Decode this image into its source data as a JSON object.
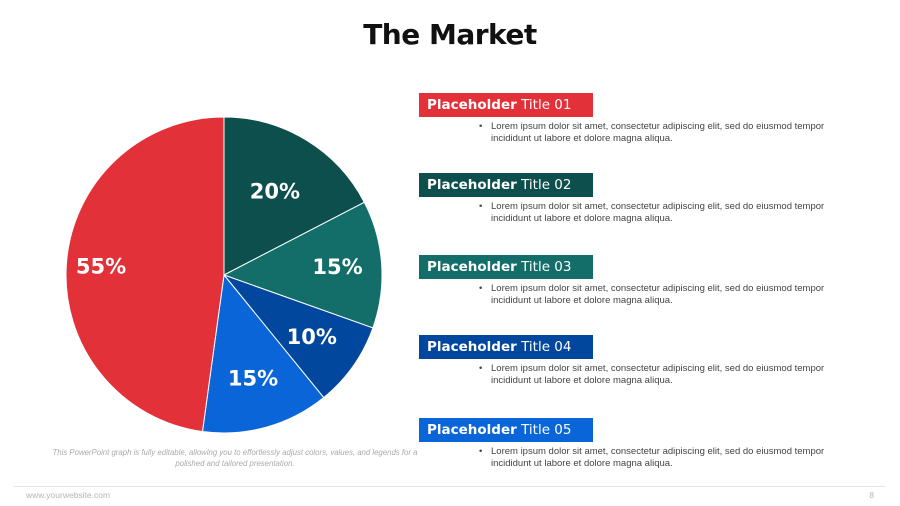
{
  "slide": {
    "title": "The Market",
    "note": "This PowerPoint graph is fully editable, allowing you to effortlessly adjust colors, values, and legends for a polished and tailored presentation.",
    "footer": {
      "website": "www.yourwebsite.com",
      "page_number": "8"
    }
  },
  "items": [
    {
      "title_bold": "Placeholder",
      "title_rest": " Title 01",
      "color": "#E3313A",
      "body": "Lorem ipsum dolor sit amet, consectetur adipiscing elit, sed do eiusmod tempor incididunt ut labore et dolore magna aliqua."
    },
    {
      "title_bold": "Placeholder",
      "title_rest": " Title 02",
      "color": "#0D4F4D",
      "body": "Lorem ipsum dolor sit amet, consectetur adipiscing elit, sed do eiusmod tempor incididunt ut labore et dolore magna aliqua."
    },
    {
      "title_bold": "Placeholder",
      "title_rest": " Title 03",
      "color": "#136E6A",
      "body": "Lorem ipsum dolor sit amet, consectetur adipiscing elit, sed do eiusmod tempor incididunt ut labore et dolore magna aliqua."
    },
    {
      "title_bold": "Placeholder",
      "title_rest": " Title 04",
      "color": "#02479E",
      "body": "Lorem ipsum dolor sit amet, consectetur adipiscing elit, sed do eiusmod tempor incididunt ut labore et dolore magna aliqua."
    },
    {
      "title_bold": "Placeholder",
      "title_rest": " Title 05",
      "color": "#0A66D8",
      "body": "Lorem ipsum dolor sit amet, consectetur adipiscing elit, sed do eiusmod tempor incididunt ut labore et dolore magna aliqua."
    }
  ],
  "chart_data": {
    "type": "pie",
    "title": "The Market",
    "categories": [
      "Placeholder Title 02",
      "Placeholder Title 03",
      "Placeholder Title 04",
      "Placeholder Title 05",
      "Placeholder Title 01"
    ],
    "values": [
      20,
      15,
      10,
      15,
      55
    ],
    "labels": [
      "20%",
      "15%",
      "10%",
      "15%",
      "55%"
    ],
    "colors": [
      "#0D4F4D",
      "#136E6A",
      "#02479E",
      "#0A66D8",
      "#E3313A"
    ],
    "start_angle": "12 o'clock, clockwise",
    "legend": "none (side panel titles)"
  }
}
